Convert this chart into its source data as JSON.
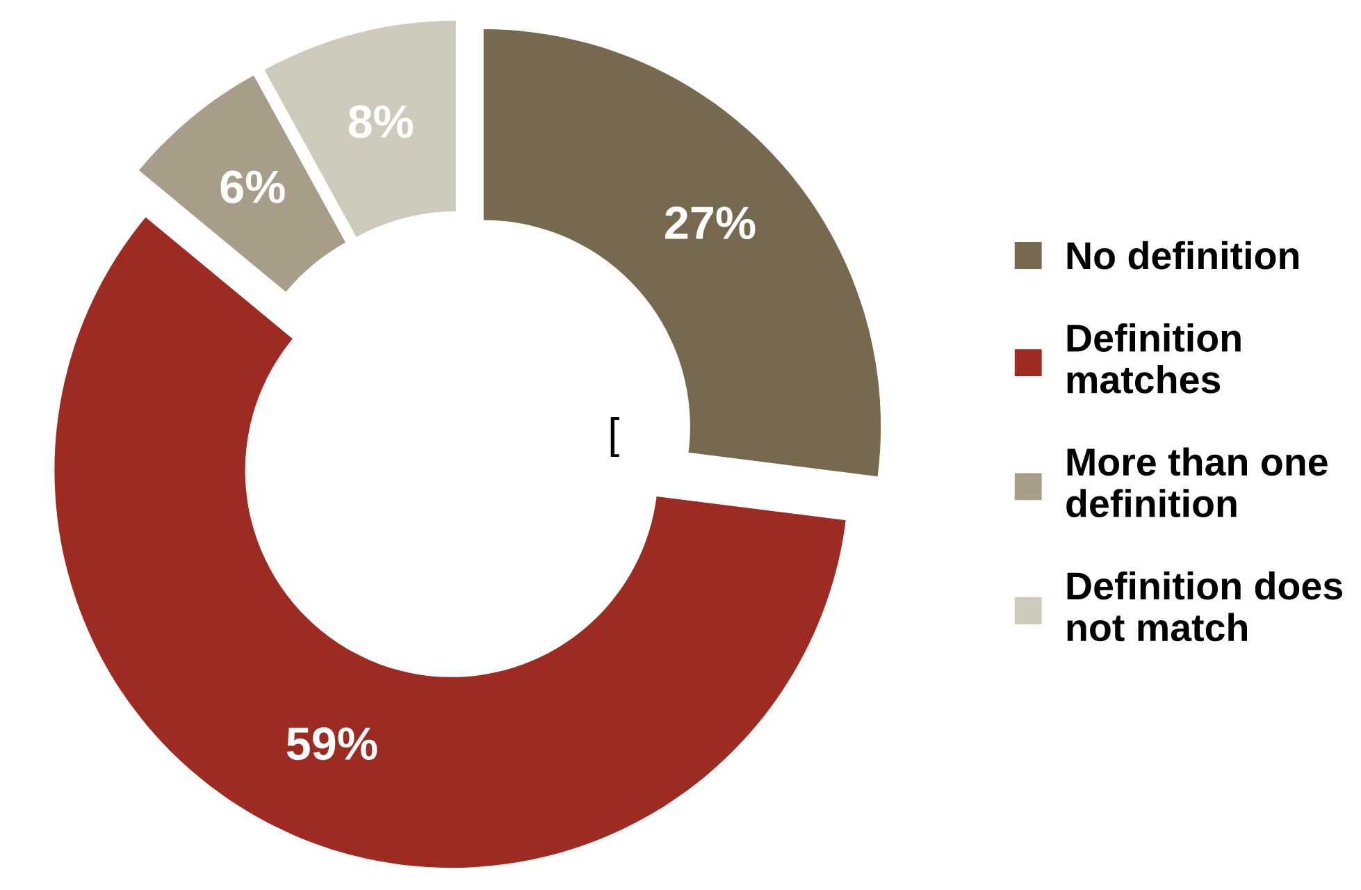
{
  "chart_data": {
    "type": "donut",
    "categories": [
      "No definition",
      "Definition matches",
      "More than one definition",
      "Definition does not match"
    ],
    "values": [
      27,
      59,
      6,
      8
    ],
    "value_labels": [
      "27%",
      "59%",
      "6%",
      "8%"
    ],
    "colors": [
      "#776950",
      "#9e2b22",
      "#a89d88",
      "#cdc9bb"
    ],
    "legend": "right",
    "annotations": [
      "["
    ]
  }
}
